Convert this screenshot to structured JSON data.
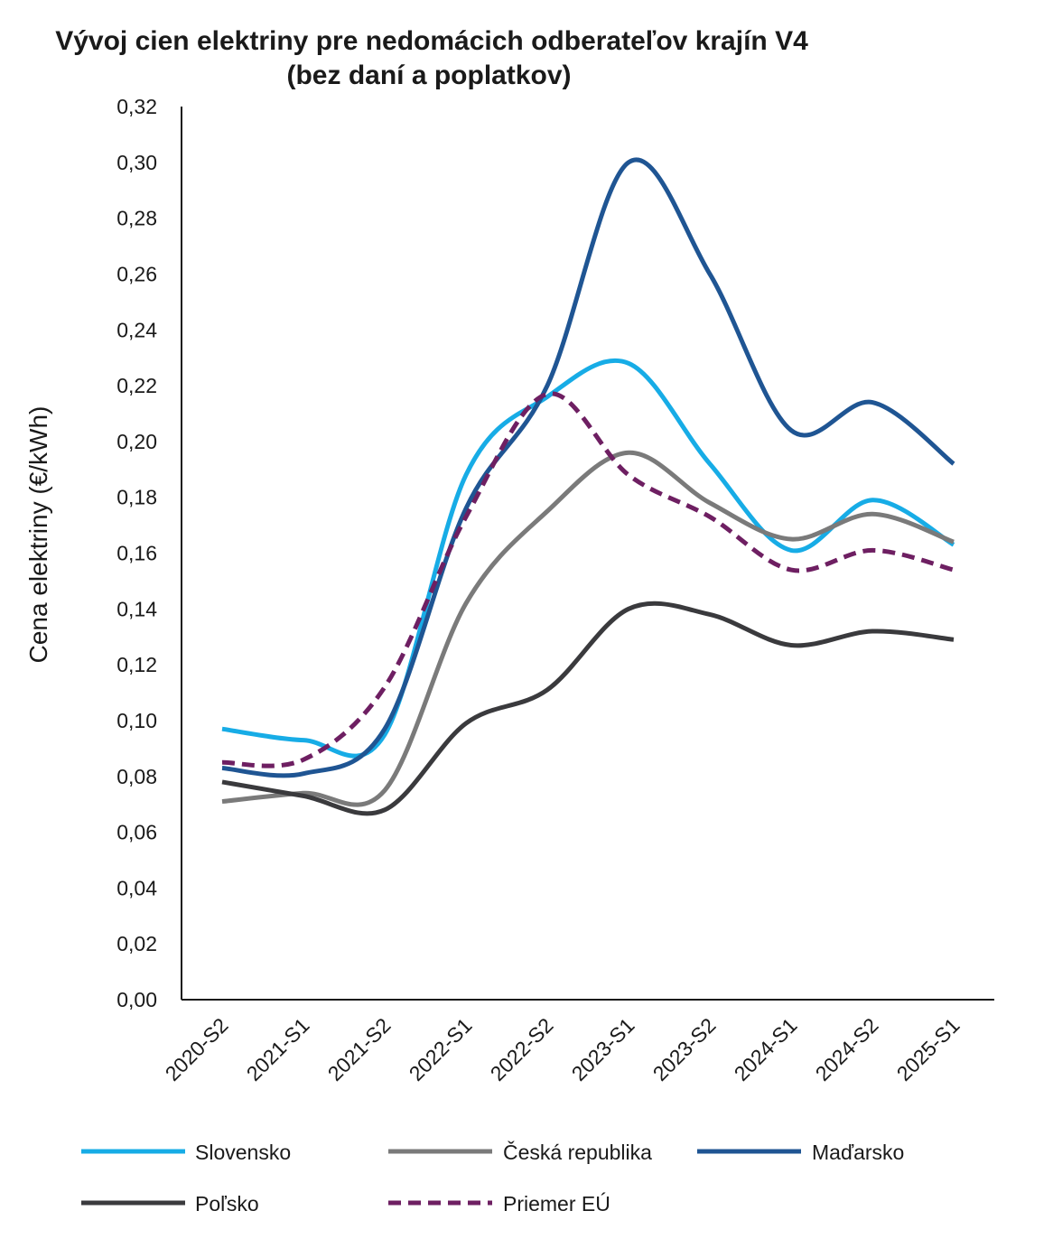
{
  "chart_data": {
    "type": "line",
    "title_line1": "Vývoj cien elektriny pre nedomácich odberateľov krajín V4",
    "title_line2": "(bez daní a poplatkov)",
    "ylabel": "Cena elektriny  (€/kWh)",
    "xlabel": "",
    "ylim": [
      0,
      0.32
    ],
    "yticks": [
      "0,00",
      "0,02",
      "0,04",
      "0,06",
      "0,08",
      "0,10",
      "0,12",
      "0,14",
      "0,16",
      "0,18",
      "0,20",
      "0,22",
      "0,24",
      "0,26",
      "0,28",
      "0,30",
      "0,32"
    ],
    "categories": [
      "2020-S2",
      "2021-S1",
      "2021-S2",
      "2022-S1",
      "2022-S2",
      "2023-S1",
      "2023-S2",
      "2024-S1",
      "2024-S2",
      "2025-S1"
    ],
    "legend_position": "bottom",
    "series": [
      {
        "name": "Slovensko",
        "color": "#17ACE6",
        "dash": false,
        "values": [
          0.097,
          0.093,
          0.095,
          0.188,
          0.216,
          0.228,
          0.192,
          0.161,
          0.179,
          0.163
        ]
      },
      {
        "name": "Česká republika",
        "color": "#7A7A7A",
        "dash": false,
        "values": [
          0.071,
          0.074,
          0.075,
          0.142,
          0.175,
          0.196,
          0.178,
          0.165,
          0.174,
          0.164
        ]
      },
      {
        "name": "Maďarsko",
        "color": "#1F5593",
        "dash": false,
        "values": [
          0.083,
          0.081,
          0.097,
          0.176,
          0.22,
          0.3,
          0.26,
          0.204,
          0.214,
          0.192
        ]
      },
      {
        "name": "Poľsko",
        "color": "#3A3A3D",
        "dash": false,
        "values": [
          0.078,
          0.073,
          0.068,
          0.099,
          0.111,
          0.14,
          0.138,
          0.127,
          0.132,
          0.129
        ]
      },
      {
        "name": "Priemer EÚ",
        "color": "#6E1F62",
        "dash": true,
        "values": [
          0.085,
          0.086,
          0.112,
          0.173,
          0.217,
          0.188,
          0.173,
          0.154,
          0.161,
          0.154
        ]
      }
    ]
  }
}
